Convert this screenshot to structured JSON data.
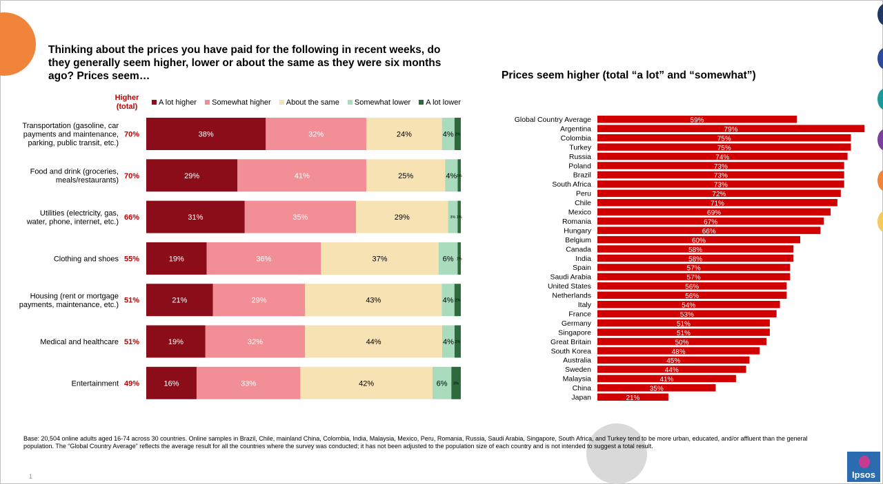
{
  "left": {
    "title": "Thinking about the prices you have paid for the following in recent weeks, do they generally seem higher, lower or about the same as they were six months ago? Prices seem…",
    "higher_header": "Higher (total)"
  },
  "right": {
    "title": "Prices seem higher (total “a lot” and “somewhat”)"
  },
  "footnote": "Base: 20,504 online adults aged 16-74 across 30 countries. Online samples in Brazil, Chile, mainland China, Colombia, India, Malaysia, Mexico, Peru, Romania, Russia, Saudi Arabia, Singapore, South Africa, and Turkey tend to be more urban, educated, and/or affluent than the general population. The “Global Country Average” reflects the average result for all the countries where the survey was conducted; it has not been adjusted to the population size of each country and is not intended to suggest a total result.",
  "page_number": "1",
  "logo_text": "Ipsos",
  "colors": {
    "a_lot_higher": "#8c0d1a",
    "somewhat_higher": "#f28e96",
    "about_same": "#f7e2b3",
    "somewhat_lower": "#a8dcbd",
    "a_lot_lower": "#2e6b3c",
    "higher_total_text": "#c00000",
    "country_bar": "#d00000",
    "accent_orange": "#f0843a"
  },
  "chart_data": [
    {
      "type": "bar",
      "stacked": true,
      "orientation": "horizontal",
      "categories": [
        "Transportation (gasoline, car payments and maintenance, parking, public transit, etc.)",
        "Food and drink (groceries, meals/restaurants)",
        "Utilities (electricity, gas, water, phone, internet, etc.)",
        "Clothing and shoes",
        "Housing (rent or mortgage payments, maintenance, etc.)",
        "Medical and healthcare",
        "Entertainment"
      ],
      "category_lines": [
        [
          "Transportation (gasoline, car",
          "payments and maintenance,",
          "parking, public transit, etc.)"
        ],
        [
          "Food and drink (groceries,",
          "meals/restaurants)"
        ],
        [
          "Utilities (electricity, gas,",
          "water, phone, internet, etc.)"
        ],
        [
          "Clothing and shoes"
        ],
        [
          "Housing (rent or mortgage",
          "payments, maintenance, etc.)"
        ],
        [
          "Medical and healthcare"
        ],
        [
          "Entertainment"
        ]
      ],
      "higher_total": [
        "70%",
        "70%",
        "66%",
        "55%",
        "51%",
        "51%",
        "49%"
      ],
      "series": [
        {
          "name": "A lot higher",
          "values": [
            38,
            29,
            31,
            19,
            21,
            19,
            16
          ]
        },
        {
          "name": "Somewhat higher",
          "values": [
            32,
            41,
            35,
            36,
            29,
            32,
            33
          ]
        },
        {
          "name": "About the same",
          "values": [
            24,
            25,
            29,
            37,
            43,
            44,
            42
          ]
        },
        {
          "name": "Somewhat lower",
          "values": [
            4,
            4,
            3,
            6,
            4,
            4,
            6
          ]
        },
        {
          "name": "A lot lower",
          "values": [
            2,
            1,
            1,
            1,
            2,
            2,
            3
          ]
        }
      ],
      "value_labels": [
        [
          "38%",
          "32%",
          "24%",
          "4%",
          "2%"
        ],
        [
          "29%",
          "41%",
          "25%",
          "4%",
          "1%"
        ],
        [
          "31%",
          "35%",
          "29%",
          "3%",
          "1%"
        ],
        [
          "19%",
          "36%",
          "37%",
          "6%",
          "1%"
        ],
        [
          "21%",
          "29%",
          "43%",
          "4%",
          "2%"
        ],
        [
          "19%",
          "32%",
          "44%",
          "4%",
          "2%"
        ],
        [
          "16%",
          "33%",
          "42%",
          "6%",
          "3%"
        ]
      ]
    },
    {
      "type": "bar",
      "orientation": "horizontal",
      "categories": [
        "Global Country Average",
        "Argentina",
        "Colombia",
        "Turkey",
        "Russia",
        "Poland",
        "Brazil",
        "South Africa",
        "Peru",
        "Chile",
        "Mexico",
        "Romania",
        "Hungary",
        "Belgium",
        "Canada",
        "India",
        "Spain",
        "Saudi Arabia",
        "United States",
        "Netherlands",
        "Italy",
        "France",
        "Germany",
        "Singapore",
        "Great Britain",
        "South Korea",
        "Australia",
        "Sweden",
        "Malaysia",
        "China",
        "Japan"
      ],
      "values": [
        59,
        79,
        75,
        75,
        74,
        73,
        73,
        73,
        72,
        71,
        69,
        67,
        66,
        60,
        58,
        58,
        57,
        57,
        56,
        56,
        54,
        53,
        51,
        51,
        50,
        48,
        45,
        44,
        41,
        35,
        21
      ],
      "value_labels": [
        "59%",
        "79%",
        "75%",
        "75%",
        "74%",
        "73%",
        "73%",
        "73%",
        "72%",
        "71%",
        "69%",
        "67%",
        "66%",
        "60%",
        "58%",
        "58%",
        "57%",
        "57%",
        "56%",
        "56%",
        "54%",
        "53%",
        "51%",
        "51%",
        "50%",
        "48%",
        "45%",
        "44%",
        "41%",
        "35%",
        "21%"
      ]
    }
  ]
}
